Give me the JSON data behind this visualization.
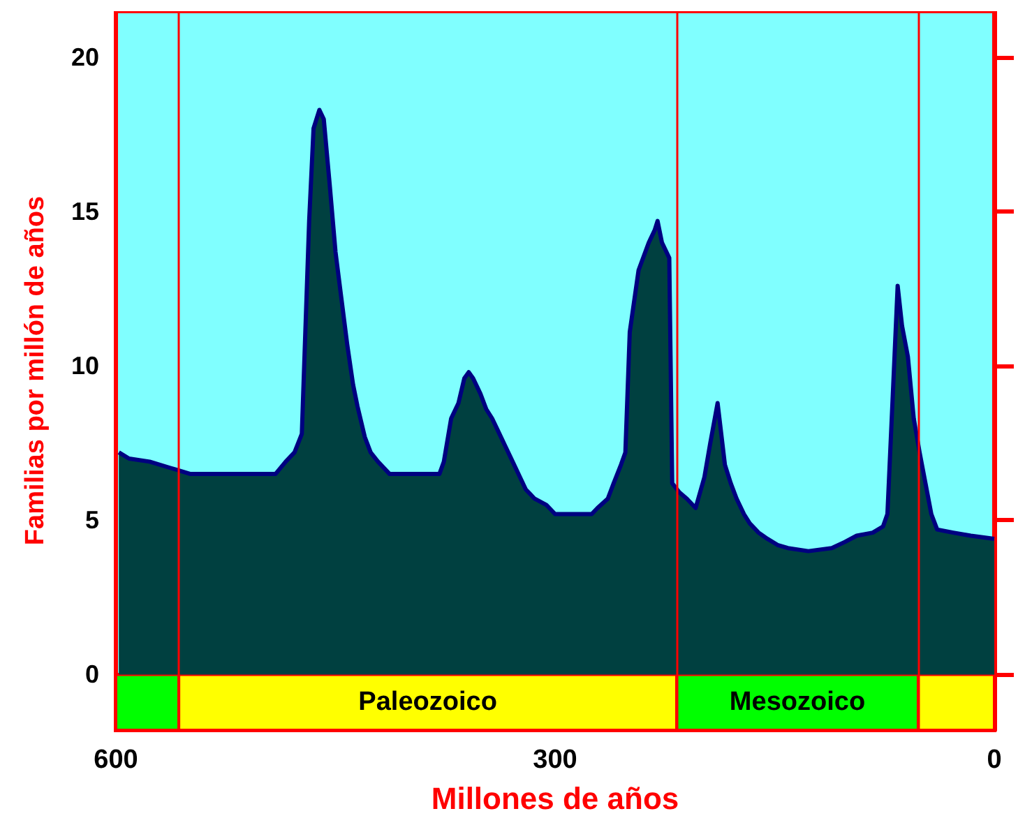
{
  "chart_data": {
    "type": "area",
    "xlabel": "Millones de años",
    "ylabel": "Familias por millón de años",
    "xlim": [
      600,
      0
    ],
    "xticks": [
      600,
      300,
      0
    ],
    "ylim": [
      -1.8,
      21.5
    ],
    "yticks": [
      0,
      5,
      10,
      15,
      20
    ],
    "grid": false,
    "series": [
      {
        "color": "#004040",
        "x": [
          598,
          591,
          577,
          563,
          549,
          491,
          484,
          478,
          473,
          468,
          465,
          461,
          458,
          454,
          450,
          446,
          442,
          438,
          435,
          430,
          426,
          421,
          413,
          379,
          376,
          371,
          366,
          362,
          359,
          356,
          351,
          347,
          343,
          338,
          334,
          329,
          324,
          320,
          314,
          306,
          300,
          275,
          271,
          264,
          260,
          255,
          252,
          249,
          243,
          236,
          232,
          230,
          227,
          222,
          220,
          215,
          210,
          204,
          198,
          194,
          189,
          184,
          180,
          176,
          171,
          167,
          161,
          155,
          148,
          141,
          127,
          111,
          102,
          94,
          83,
          76,
          73,
          69,
          66,
          63,
          59,
          55,
          51,
          47,
          43,
          39,
          28,
          16,
          0
        ],
        "values": [
          7.2,
          7.0,
          6.9,
          6.7,
          6.5,
          6.5,
          6.9,
          7.2,
          7.8,
          14.7,
          17.7,
          18.3,
          18.0,
          15.9,
          13.7,
          12.2,
          10.7,
          9.4,
          8.7,
          7.7,
          7.2,
          6.9,
          6.5,
          6.5,
          6.9,
          8.3,
          8.8,
          9.6,
          9.8,
          9.6,
          9.1,
          8.6,
          8.3,
          7.8,
          7.4,
          6.9,
          6.4,
          6.0,
          5.7,
          5.5,
          5.2,
          5.2,
          5.4,
          5.7,
          6.2,
          6.8,
          7.2,
          11.1,
          13.1,
          14.0,
          14.4,
          14.7,
          14.0,
          13.5,
          6.2,
          5.9,
          5.7,
          5.4,
          6.4,
          7.5,
          8.8,
          6.8,
          6.2,
          5.7,
          5.2,
          4.9,
          4.6,
          4.4,
          4.2,
          4.1,
          4.0,
          4.1,
          4.3,
          4.5,
          4.6,
          4.8,
          5.2,
          9.4,
          12.6,
          11.3,
          10.3,
          8.3,
          7.2,
          6.2,
          5.2,
          4.7,
          4.6,
          4.5,
          4.4
        ]
      }
    ],
    "ref_lines": [
      {
        "axis": "x",
        "value": 557,
        "color": "#ff0000"
      },
      {
        "axis": "x",
        "value": 217,
        "color": "#ff0000"
      },
      {
        "axis": "x",
        "value": 52,
        "color": "#ff0000"
      }
    ],
    "bands": [
      {
        "axis": "x",
        "from": 600,
        "to": 557,
        "color": "#00ff00"
      },
      {
        "axis": "x",
        "from": 557,
        "to": 217,
        "label": "Paleozoico",
        "color": "#ffff00"
      },
      {
        "axis": "x",
        "from": 217,
        "to": 52,
        "label": "Mesozoico",
        "color": "#00ff00"
      },
      {
        "axis": "x",
        "from": 52,
        "to": 0,
        "color": "#ffff00"
      }
    ]
  }
}
